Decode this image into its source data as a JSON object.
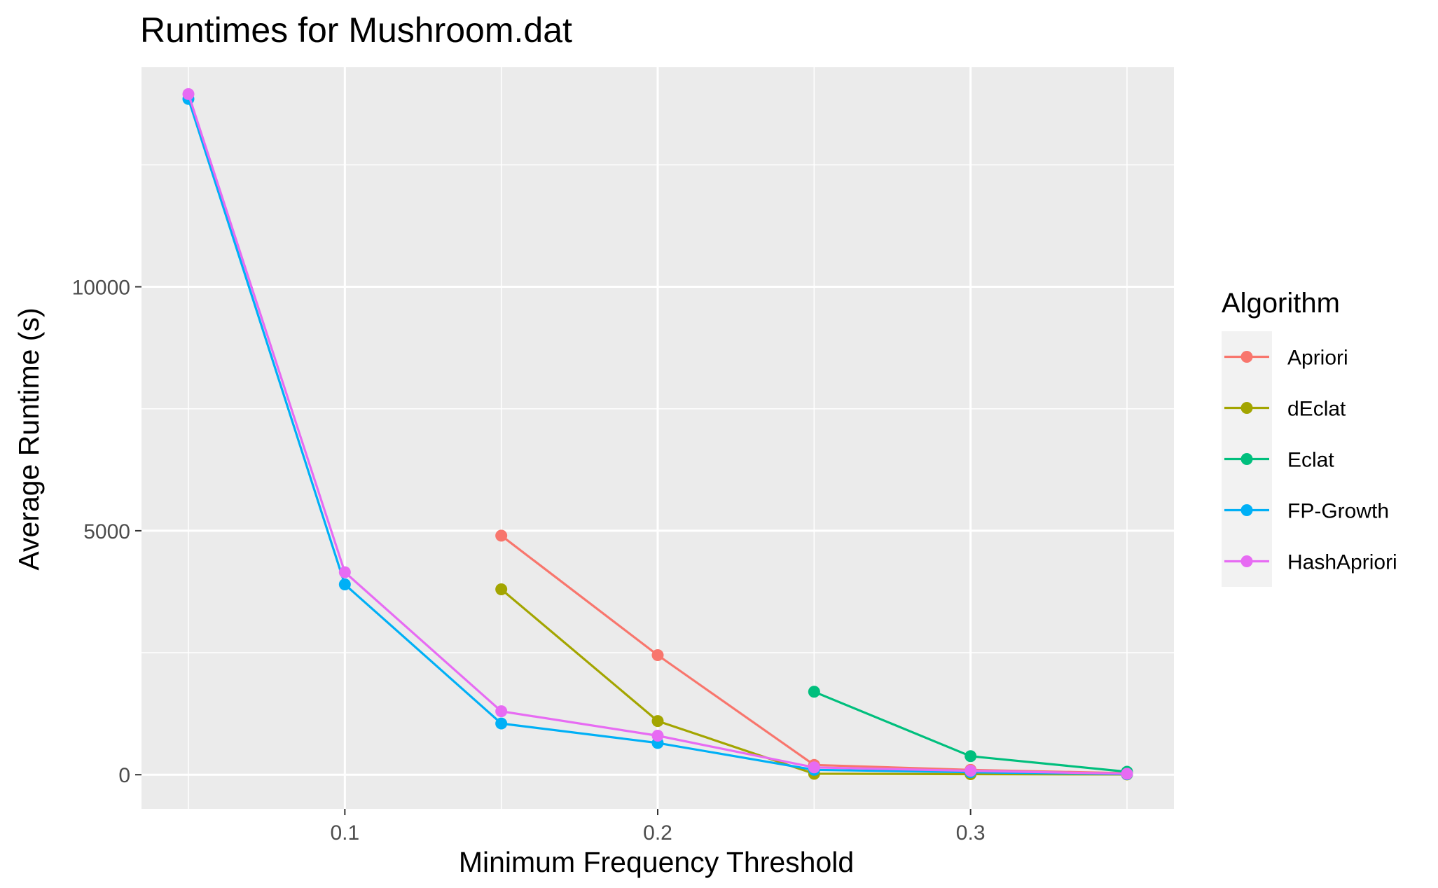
{
  "chart_data": {
    "type": "line",
    "title": "Runtimes for Mushroom.dat",
    "xlabel": "Minimum Frequency Threshold",
    "ylabel": "Average Runtime (s)",
    "xlim": [
      0.035,
      0.365
    ],
    "ylim": [
      -700,
      14500
    ],
    "xticks": [
      0.1,
      0.2,
      0.3
    ],
    "xtick_labels": [
      "0.1",
      "0.2",
      "0.3"
    ],
    "yticks": [
      0,
      5000,
      10000
    ],
    "ytick_labels": [
      "0",
      "5000",
      "10000"
    ],
    "x_minor_gridlines": [
      0.05,
      0.15,
      0.25,
      0.35
    ],
    "y_minor_gridlines": [
      2500,
      7500,
      12500
    ],
    "grid": true,
    "legend": {
      "title": "Algorithm",
      "placement": "right"
    },
    "series": [
      {
        "name": "Apriori",
        "color": "#F8766D",
        "x": [
          0.15,
          0.2,
          0.25,
          0.3,
          0.35
        ],
        "values": [
          4900,
          2450,
          200,
          100,
          30
        ]
      },
      {
        "name": "dEclat",
        "color": "#A3A500",
        "x": [
          0.15,
          0.2,
          0.25,
          0.3,
          0.35
        ],
        "values": [
          3800,
          1100,
          20,
          10,
          5
        ]
      },
      {
        "name": "Eclat",
        "color": "#00BF7D",
        "x": [
          0.25,
          0.3,
          0.35
        ],
        "values": [
          1700,
          380,
          60
        ]
      },
      {
        "name": "FP-Growth",
        "color": "#00B0F6",
        "x": [
          0.05,
          0.1,
          0.15,
          0.2,
          0.25,
          0.3,
          0.35
        ],
        "values": [
          13850,
          3900,
          1050,
          650,
          100,
          50,
          10
        ]
      },
      {
        "name": "HashApriori",
        "color": "#E76BF3",
        "x": [
          0.05,
          0.1,
          0.15,
          0.2,
          0.25,
          0.3,
          0.35
        ],
        "values": [
          13950,
          4150,
          1300,
          800,
          150,
          80,
          20
        ]
      }
    ]
  }
}
